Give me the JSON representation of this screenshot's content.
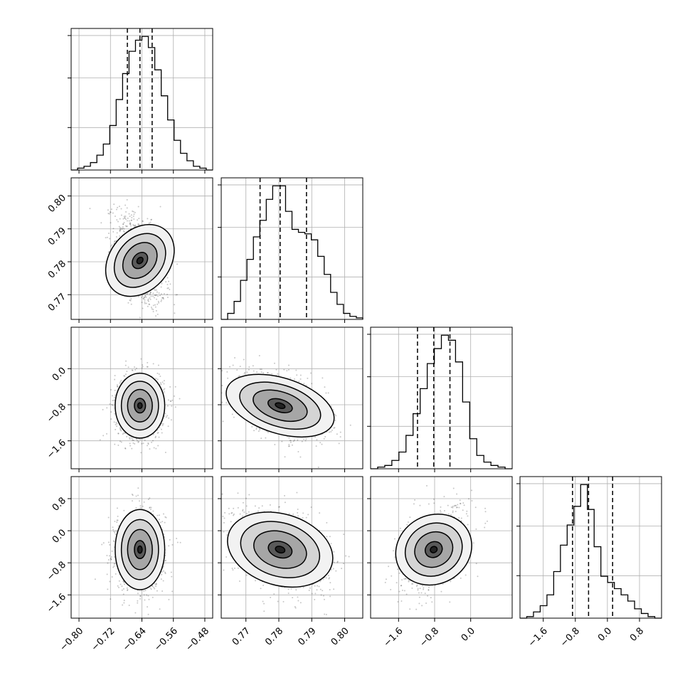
{
  "chart_data": {
    "type": "corner",
    "grid": true,
    "dimensions": [
      {
        "range": [
          -0.82,
          -0.46
        ],
        "ticks": [
          -0.8,
          -0.72,
          -0.64,
          -0.56,
          -0.48
        ],
        "tick_labels": [
          "−0.80",
          "−0.72",
          "−0.64",
          "−0.56",
          "−0.48"
        ],
        "quantiles": [
          -0.677,
          -0.645,
          -0.614
        ]
      },
      {
        "range": [
          0.7625,
          0.8055
        ],
        "ticks": [
          0.77,
          0.78,
          0.79,
          0.8
        ],
        "tick_labels": [
          "0.77",
          "0.78",
          "0.79",
          "0.80"
        ],
        "quantiles": [
          0.7743,
          0.7804,
          0.7884
        ]
      },
      {
        "range": [
          -2.22,
          0.92
        ],
        "ticks": [
          -1.6,
          -0.8,
          0.0
        ],
        "tick_labels": [
          "−1.6",
          "−0.8",
          "0.0"
        ],
        "quantiles": [
          -1.18,
          -0.82,
          -0.46
        ]
      },
      {
        "range": [
          -2.18,
          1.35
        ],
        "ticks": [
          -1.6,
          -0.8,
          0.0,
          0.8
        ],
        "tick_labels": [
          "−1.6",
          "−0.8",
          "0.0",
          "0.8"
        ],
        "quantiles": [
          -0.87,
          -0.47,
          0.13
        ]
      }
    ],
    "row_axis_ticks": {
      "1": {
        "ticks": [
          0.77,
          0.78,
          0.79,
          0.8
        ],
        "tick_labels": [
          "0.77",
          "0.78",
          "0.79",
          "0.80"
        ]
      },
      "2": {
        "ticks": [
          -1.6,
          -0.8,
          0.0
        ],
        "tick_labels": [
          "−1.6",
          "−0.8",
          "0.0"
        ]
      },
      "3": {
        "ticks": [
          -1.6,
          -0.8,
          0.0,
          0.8
        ],
        "tick_labels": [
          "−1.6",
          "−0.8",
          "0.0",
          "0.8"
        ]
      }
    },
    "histograms": [
      {
        "bins_lo": -0.82,
        "bins_hi": -0.46,
        "counts": [
          0,
          1,
          2,
          4,
          8,
          14,
          24,
          38,
          52,
          64,
          70,
          72,
          66,
          54,
          40,
          27,
          16,
          9,
          5,
          2,
          1,
          0
        ]
      },
      {
        "bins_lo": 0.7625,
        "bins_hi": 0.8055,
        "counts": [
          0,
          4,
          12,
          26,
          40,
          55,
          66,
          80,
          89,
          89,
          72,
          60,
          58,
          57,
          53,
          42,
          30,
          18,
          10,
          4,
          2,
          1
        ]
      },
      {
        "bins_lo": -2.22,
        "bins_hi": 0.92,
        "counts": [
          0,
          1,
          2,
          5,
          10,
          20,
          33,
          48,
          63,
          72,
          80,
          77,
          64,
          40,
          18,
          8,
          4,
          2,
          1,
          0
        ]
      },
      {
        "bins_lo": -2.18,
        "bins_hi": 1.35,
        "counts": [
          0,
          1,
          4,
          8,
          15,
          30,
          47,
          60,
          72,
          86,
          70,
          46,
          27,
          23,
          19,
          15,
          11,
          6,
          3,
          1,
          0
        ]
      }
    ],
    "correlations": {
      "1,0": -0.45,
      "2,0": 0.0,
      "2,1": -0.45,
      "3,0": 0.0,
      "3,1": -0.35,
      "3,2": 0.45
    }
  }
}
